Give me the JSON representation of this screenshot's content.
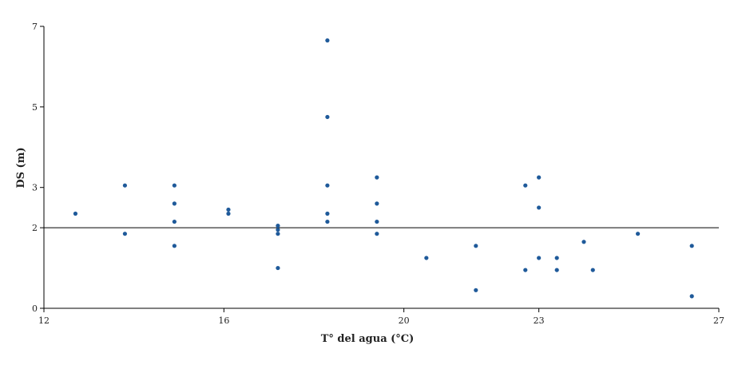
{
  "chart_data": {
    "type": "scatter",
    "title": "",
    "xlabel": "T° del agua (°C)",
    "ylabel": "DS (m)",
    "xlim": [
      12,
      27
    ],
    "ylim": [
      0,
      7
    ],
    "x_ticks": [
      12,
      16,
      20,
      23,
      27
    ],
    "y_ticks": [
      0,
      2,
      3,
      5,
      7
    ],
    "x_tick_labels": [
      "12",
      "16",
      "20",
      "23",
      "27"
    ],
    "y_tick_labels": [
      "0",
      "2",
      "3",
      "5",
      "7"
    ],
    "reference_line": {
      "y": 2.0
    },
    "grid": false,
    "marker_color": "#1f5a9a",
    "line_color": "#000000",
    "series": [
      {
        "values": [
          {
            "x": 12.7,
            "y": 2.35
          },
          {
            "x": 13.8,
            "y": 3.05
          },
          {
            "x": 13.8,
            "y": 1.85
          },
          {
            "x": 14.9,
            "y": 3.05
          },
          {
            "x": 14.9,
            "y": 2.6
          },
          {
            "x": 14.9,
            "y": 2.15
          },
          {
            "x": 14.9,
            "y": 1.55
          },
          {
            "x": 16.1,
            "y": 2.45
          },
          {
            "x": 16.1,
            "y": 2.35
          },
          {
            "x": 17.2,
            "y": 2.05
          },
          {
            "x": 17.2,
            "y": 1.95
          },
          {
            "x": 17.2,
            "y": 1.85
          },
          {
            "x": 17.2,
            "y": 1.0
          },
          {
            "x": 18.3,
            "y": 6.65
          },
          {
            "x": 18.3,
            "y": 4.75
          },
          {
            "x": 18.3,
            "y": 3.05
          },
          {
            "x": 18.3,
            "y": 2.35
          },
          {
            "x": 18.3,
            "y": 2.15
          },
          {
            "x": 19.4,
            "y": 3.25
          },
          {
            "x": 19.4,
            "y": 2.6
          },
          {
            "x": 19.4,
            "y": 2.15
          },
          {
            "x": 19.4,
            "y": 1.85
          },
          {
            "x": 20.5,
            "y": 1.25
          },
          {
            "x": 21.6,
            "y": 1.55
          },
          {
            "x": 21.6,
            "y": 0.45
          },
          {
            "x": 22.7,
            "y": 3.05
          },
          {
            "x": 22.7,
            "y": 0.95
          },
          {
            "x": 23.0,
            "y": 3.25
          },
          {
            "x": 23.0,
            "y": 2.5
          },
          {
            "x": 23.0,
            "y": 1.25
          },
          {
            "x": 23.4,
            "y": 1.25
          },
          {
            "x": 23.4,
            "y": 0.95
          },
          {
            "x": 24.0,
            "y": 1.65
          },
          {
            "x": 24.2,
            "y": 0.95
          },
          {
            "x": 25.2,
            "y": 1.85
          },
          {
            "x": 26.4,
            "y": 1.55
          },
          {
            "x": 26.4,
            "y": 0.3
          }
        ]
      }
    ]
  }
}
